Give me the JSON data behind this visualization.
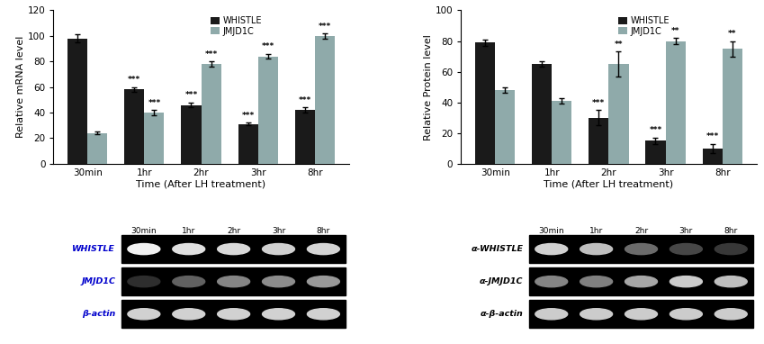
{
  "left_chart": {
    "title": "Relative mRNA level",
    "xlabel": "Time (After LH treatment)",
    "categories": [
      "30min",
      "1hr",
      "2hr",
      "3hr",
      "8hr"
    ],
    "whistle_values": [
      98,
      58,
      46,
      31,
      42
    ],
    "whistle_errors": [
      3,
      2,
      2,
      1,
      2
    ],
    "jmjd1c_values": [
      24,
      40,
      78,
      84,
      100
    ],
    "jmjd1c_errors": [
      1,
      2,
      2,
      2,
      2
    ],
    "whistle_color": "#1a1a1a",
    "jmjd1c_color": "#8faaaa",
    "ylim": [
      0,
      120
    ],
    "yticks": [
      0,
      20,
      40,
      60,
      80,
      100,
      120
    ],
    "significance_whistle": [
      "",
      "***",
      "***",
      "***",
      "***"
    ],
    "significance_jmjd1c": [
      "",
      "***",
      "***",
      "***",
      "***"
    ]
  },
  "right_chart": {
    "title": "Relative Protein level",
    "xlabel": "Time (After LH treatment)",
    "categories": [
      "30min",
      "1hr",
      "2hr",
      "3hr",
      "8hr"
    ],
    "whistle_values": [
      79,
      65,
      30,
      15,
      10
    ],
    "whistle_errors": [
      2,
      2,
      5,
      2,
      3
    ],
    "jmjd1c_values": [
      48,
      41,
      65,
      80,
      75
    ],
    "jmjd1c_errors": [
      2,
      2,
      8,
      2,
      5
    ],
    "whistle_color": "#1a1a1a",
    "jmjd1c_color": "#8faaaa",
    "ylim": [
      0,
      100
    ],
    "yticks": [
      0,
      20,
      40,
      60,
      80,
      100
    ],
    "significance_whistle": [
      "",
      "",
      "***",
      "***",
      "***"
    ],
    "significance_jmjd1c": [
      "",
      "",
      "**",
      "**",
      "**"
    ]
  },
  "left_gel": {
    "time_labels": [
      "30min",
      "1hr",
      "2hr",
      "3hr",
      "8hr"
    ],
    "row_labels": [
      "WHISTLE",
      "JMJD1C",
      "β-actin"
    ],
    "label_color": "#0000cc",
    "band_intensities": [
      [
        0.95,
        0.88,
        0.85,
        0.82,
        0.83
      ],
      [
        0.18,
        0.38,
        0.52,
        0.55,
        0.6
      ],
      [
        0.82,
        0.82,
        0.82,
        0.82,
        0.82
      ]
    ]
  },
  "right_gel": {
    "time_labels": [
      "30min",
      "1hr",
      "2hr",
      "3hr",
      "8hr"
    ],
    "row_labels": [
      "α-WHISTLE",
      "α-JMJD1C",
      "α-β-actin"
    ],
    "label_color": "#000000",
    "band_intensities": [
      [
        0.82,
        0.75,
        0.42,
        0.28,
        0.22
      ],
      [
        0.52,
        0.5,
        0.65,
        0.8,
        0.75
      ],
      [
        0.8,
        0.8,
        0.8,
        0.8,
        0.8
      ]
    ]
  },
  "bar_width": 0.35
}
